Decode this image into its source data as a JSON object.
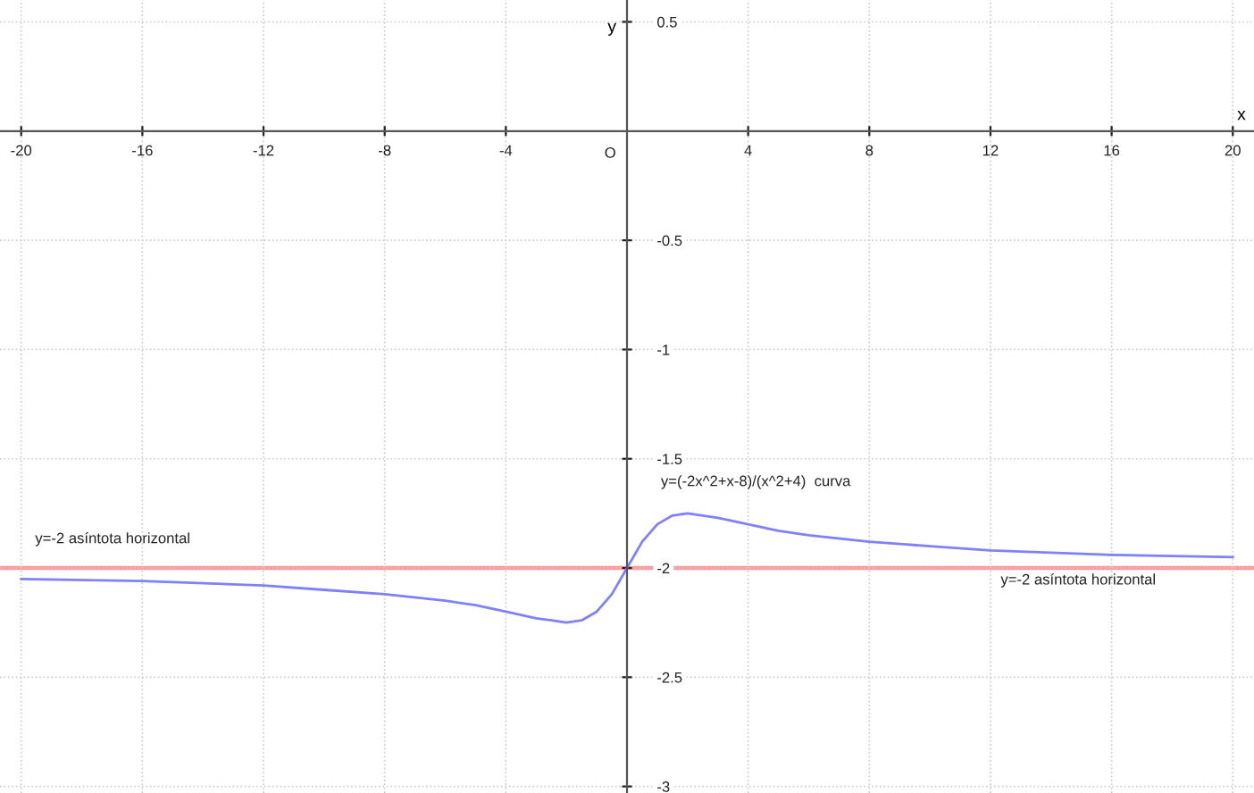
{
  "chart_data": {
    "type": "line",
    "xlabel": "x",
    "ylabel": "y",
    "xlim": [
      -20.7,
      20.7
    ],
    "ylim": [
      -3.03,
      0.6
    ],
    "xticks": [
      -20,
      -16,
      -12,
      -8,
      -4,
      4,
      8,
      12,
      16,
      20
    ],
    "yticks": [
      0.5,
      -0.5,
      -1,
      -1.5,
      -2,
      -2.5,
      -3
    ],
    "grid": true,
    "marker": "none",
    "line_style": "solid",
    "x": [
      -20,
      -16,
      -12,
      -10,
      -8,
      -6,
      -5,
      -4,
      -3,
      -2.5,
      -2,
      -1.5,
      -1,
      -0.5,
      0,
      0.5,
      1,
      1.5,
      2,
      2.5,
      3,
      4,
      5,
      6,
      8,
      10,
      12,
      16,
      20
    ],
    "series": [
      {
        "color": "#8080ff",
        "values": [
          -2.05,
          -2.06,
          -2.08,
          -2.1,
          -2.12,
          -2.15,
          -2.17,
          -2.2,
          -2.23,
          -2.24,
          -2.25,
          -2.24,
          -2.2,
          -2.12,
          -2.0,
          -1.88,
          -1.8,
          -1.76,
          -1.75,
          -1.76,
          -1.77,
          -1.8,
          -1.83,
          -1.85,
          -1.88,
          -1.9,
          -1.92,
          -1.94,
          -1.95
        ]
      }
    ],
    "ref_lines": [
      {
        "axis": "y",
        "value": -2,
        "color": "#ff9999"
      }
    ],
    "annotations": [
      "O",
      "y=(-2x^2+x-8)/(x^2+4)  curva",
      "y=-2 asíntota horizontal",
      "y=-2 asíntota horizontal"
    ]
  }
}
